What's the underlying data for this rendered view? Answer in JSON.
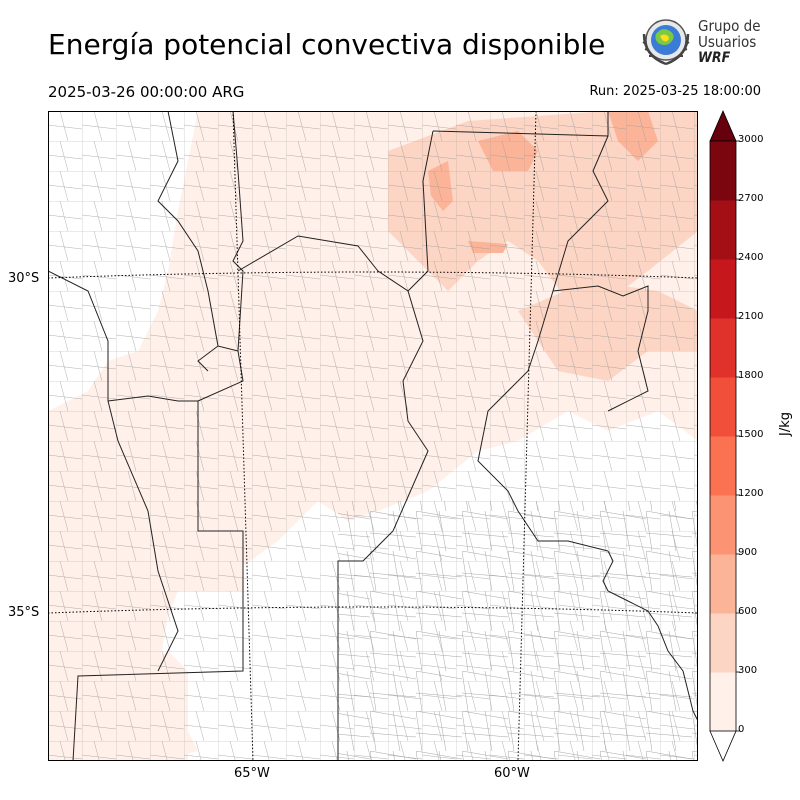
{
  "title": "Energía potencial convectiva disponible",
  "valid_time": "2025-03-26 00:00:00 ARG",
  "run_time": "Run: 2025-03-25 18:00:00",
  "logo": {
    "line1": "Grupo de",
    "line2": "Usuarios",
    "line3": "WRF"
  },
  "map": {
    "lat_labels": [
      "30°S",
      "35°S"
    ],
    "lon_labels": [
      "65°W",
      "60°W"
    ]
  },
  "colorbar": {
    "label": "J/kg",
    "ticks": [
      "0",
      "300",
      "600",
      "900",
      "1200",
      "1500",
      "1800",
      "2100",
      "2400",
      "2700",
      "3000"
    ],
    "colors": [
      "#fff0e9",
      "#fdd5c4",
      "#fcb499",
      "#fc9474",
      "#fb7252",
      "#f24f3a",
      "#e0312b",
      "#c5171c",
      "#a40f16",
      "#7b0610"
    ],
    "extend": "both",
    "over_color": "#67000d",
    "under_color": "#ffffff"
  }
}
